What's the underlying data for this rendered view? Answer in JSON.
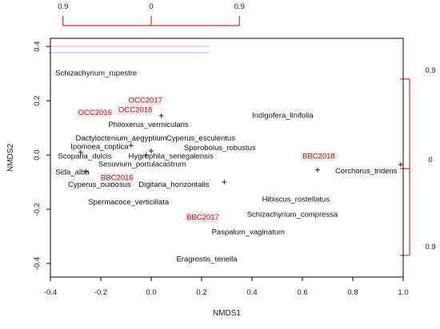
{
  "chart_data": {
    "type": "scatter",
    "xlabel": "NMDS1",
    "ylabel": "NMDS2",
    "xlim": [
      -0.4,
      1.0
    ],
    "ylim": [
      -0.45,
      0.43
    ],
    "x_ticks": [
      "-0.4",
      "-0.2",
      "0.0",
      "0.2",
      "0.4",
      "0.6",
      "0.8",
      "1.0"
    ],
    "x_tick_values": [
      -0.4,
      -0.2,
      0.0,
      0.2,
      0.4,
      0.6,
      0.8,
      1.0
    ],
    "y_ticks": [
      "-0.4",
      "-0.2",
      "0.0",
      "0.2",
      "0.4"
    ],
    "y_tick_values": [
      -0.4,
      -0.2,
      0.0,
      0.2,
      0.4
    ],
    "grid": false,
    "points": [
      {
        "x": 0.04,
        "y": 0.145
      },
      {
        "x": -0.08,
        "y": 0.035
      },
      {
        "x": -0.02,
        "y": 0.0
      },
      {
        "x": 0.0,
        "y": 0.015
      },
      {
        "x": -0.28,
        "y": 0.01
      },
      {
        "x": -0.26,
        "y": -0.06
      },
      {
        "x": 0.29,
        "y": -0.1
      },
      {
        "x": 0.66,
        "y": -0.055
      },
      {
        "x": 0.99,
        "y": -0.035
      }
    ],
    "species_labels": [
      {
        "text": "Schizachyrium_rupestre",
        "x": -0.38,
        "y": 0.3
      },
      {
        "text": "Philoxerus_vermicularis",
        "x": -0.17,
        "y": 0.11
      },
      {
        "text": "Indigofera_linifolia",
        "x": 0.4,
        "y": 0.145
      },
      {
        "text": "Dactyloctenium_aegyptium",
        "x": -0.3,
        "y": 0.06
      },
      {
        "text": "Cyperus_esculentus",
        "x": 0.06,
        "y": 0.06
      },
      {
        "text": "Ipomoea_coptica",
        "x": -0.32,
        "y": 0.03
      },
      {
        "text": "Sporobolus_robustus",
        "x": 0.13,
        "y": 0.025
      },
      {
        "text": "Scoparia_dulcis",
        "x": -0.37,
        "y": -0.005
      },
      {
        "text": "Hygrophila_senegalensis",
        "x": -0.09,
        "y": -0.005
      },
      {
        "text": "Sesuvium_portulacastrum",
        "x": -0.21,
        "y": -0.035
      },
      {
        "text": "Sida_alba",
        "x": -0.38,
        "y": -0.065
      },
      {
        "text": "Corchorus_tridens",
        "x": 0.73,
        "y": -0.06
      },
      {
        "text": "Cyperus_bulbosus",
        "x": -0.33,
        "y": -0.11
      },
      {
        "text": "Digitaria_horizontalis",
        "x": -0.05,
        "y": -0.11
      },
      {
        "text": "Hibiscus_rostellatus",
        "x": 0.44,
        "y": -0.165
      },
      {
        "text": "Spermacoce_verticillata",
        "x": -0.25,
        "y": -0.175
      },
      {
        "text": "Schizachyrium_compressa",
        "x": 0.38,
        "y": -0.22
      },
      {
        "text": "Paspalum_vaginatum",
        "x": 0.24,
        "y": -0.285
      },
      {
        "text": "Eragrostis_tenella",
        "x": 0.1,
        "y": -0.385
      }
    ],
    "site_labels": [
      {
        "text": "OCC2017",
        "x": -0.09,
        "y": 0.2
      },
      {
        "text": "OCC2016",
        "x": -0.29,
        "y": 0.155
      },
      {
        "text": "OCC2018",
        "x": -0.13,
        "y": 0.165
      },
      {
        "text": "BBC2018",
        "x": 0.6,
        "y": -0.005
      },
      {
        "text": "BBC2016",
        "x": -0.2,
        "y": -0.085
      },
      {
        "text": "BBC2017",
        "x": 0.14,
        "y": -0.23
      }
    ],
    "secondary_top_axis_ticks": [
      "0.9",
      "0",
      "0.9"
    ],
    "secondary_top_axis_values": [
      -0.35,
      0.0,
      0.35
    ],
    "secondary_right_axis_ticks": [
      "0.9",
      "0",
      "0.9"
    ],
    "secondary_right_axis_values": [
      0.28,
      -0.05,
      -0.37
    ],
    "colors": {
      "sites": "#b22222",
      "secondary_axes": "#d2342a",
      "points": "#222222"
    }
  }
}
